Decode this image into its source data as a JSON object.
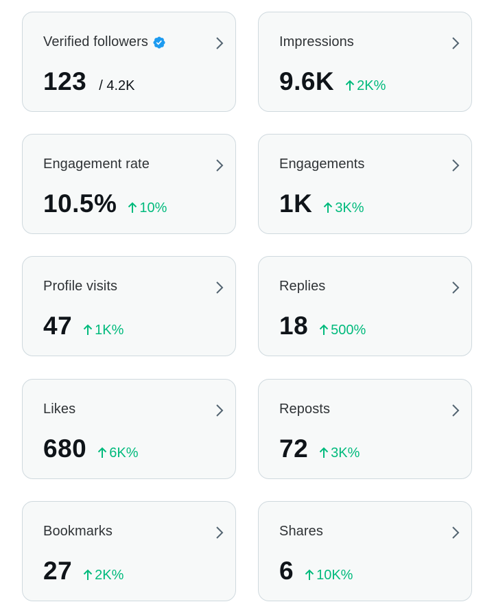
{
  "colors": {
    "card_bg": "#f7f9f9",
    "card_border": "#cfd9de",
    "positive": "#00ba7c",
    "verified": "#1d9bf0",
    "chevron": "#536471"
  },
  "cards": [
    {
      "label": "Verified followers",
      "value": "123",
      "sub": "/ 4.2K",
      "change": "",
      "verified": true
    },
    {
      "label": "Impressions",
      "value": "9.6K",
      "sub": "",
      "change": "2K%"
    },
    {
      "label": "Engagement rate",
      "value": "10.5%",
      "sub": "",
      "change": "10%"
    },
    {
      "label": "Engagements",
      "value": "1K",
      "sub": "",
      "change": "3K%"
    },
    {
      "label": "Profile visits",
      "value": "47",
      "sub": "",
      "change": "1K%"
    },
    {
      "label": "Replies",
      "value": "18",
      "sub": "",
      "change": "500%"
    },
    {
      "label": "Likes",
      "value": "680",
      "sub": "",
      "change": "6K%"
    },
    {
      "label": "Reposts",
      "value": "72",
      "sub": "",
      "change": "3K%"
    },
    {
      "label": "Bookmarks",
      "value": "27",
      "sub": "",
      "change": "2K%"
    },
    {
      "label": "Shares",
      "value": "6",
      "sub": "",
      "change": "10K%"
    }
  ]
}
